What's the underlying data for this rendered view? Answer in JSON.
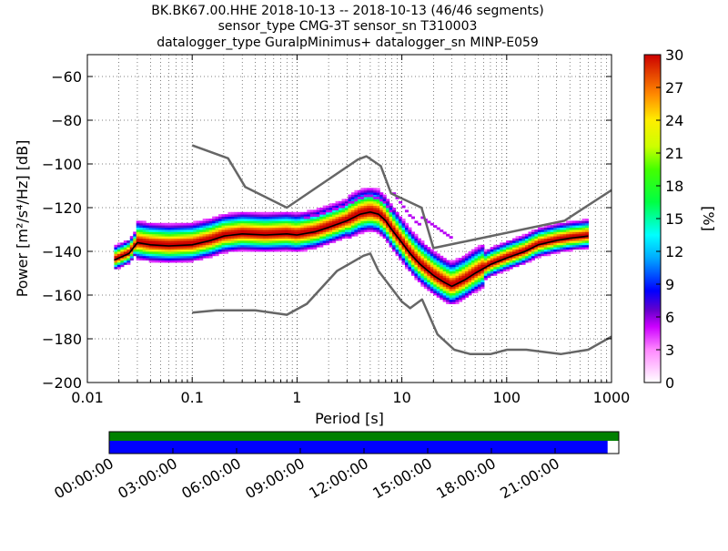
{
  "title_lines": [
    "BK.BK67.00.HHE   2018-10-13 -- 2018-10-13  (46/46 segments)",
    "sensor_type CMG-3T sensor_sn T310003",
    "datalogger_type GuralpMinimus+ datalogger_sn MINP-E059"
  ],
  "chart_data": {
    "type": "heatmap",
    "xlabel": "Period [s]",
    "ylabel": "Power [m²/s⁴/Hz] [dB]",
    "xscale": "log",
    "xlim": [
      0.01,
      1000
    ],
    "ylim": [
      -200,
      -50
    ],
    "x_ticks": [
      0.01,
      0.1,
      1,
      10,
      100,
      1000
    ],
    "x_tick_labels": [
      "0.01",
      "0.1",
      "1",
      "10",
      "100",
      "1000"
    ],
    "y_ticks": [
      -200,
      -180,
      -160,
      -140,
      -120,
      -100,
      -80,
      -60
    ],
    "y_tick_labels": [
      "−200",
      "−180",
      "−160",
      "−140",
      "−120",
      "−100",
      "−80",
      "−60"
    ],
    "grid": true,
    "colorbar": {
      "label": "[%]",
      "range": [
        0,
        30
      ],
      "ticks": [
        0,
        3,
        6,
        9,
        12,
        15,
        18,
        21,
        24,
        27,
        30
      ],
      "tick_labels": [
        "0",
        "3",
        "6",
        "9",
        "12",
        "15",
        "18",
        "21",
        "24",
        "27",
        "30"
      ]
    },
    "mode_curve": {
      "x": [
        0.018,
        0.025,
        0.03,
        0.04,
        0.06,
        0.1,
        0.15,
        0.2,
        0.3,
        0.5,
        0.8,
        1,
        1.5,
        2,
        3,
        4,
        5,
        6,
        7,
        8,
        10,
        12,
        15,
        20,
        25,
        30,
        40,
        50,
        70,
        100,
        150,
        200,
        300,
        400,
        600
      ],
      "y": [
        -144,
        -141,
        -136,
        -137,
        -137.5,
        -137,
        -135,
        -133,
        -132,
        -132.5,
        -132,
        -132.5,
        -131,
        -129,
        -126,
        -123,
        -122,
        -123,
        -126,
        -130,
        -136,
        -141,
        -146,
        -151,
        -154,
        -156,
        -153,
        -150,
        -146,
        -143,
        -140,
        -137,
        -135,
        -134,
        -133
      ]
    },
    "nlnm": {
      "x": [
        0.1,
        0.17,
        0.4,
        0.8,
        1.24,
        2.4,
        4.3,
        5,
        6,
        10,
        12,
        15.6,
        21.9,
        31.6,
        45,
        70,
        101,
        154,
        328,
        600,
        1000
      ],
      "y": [
        -168,
        -167,
        -167,
        -169,
        -164,
        -149,
        -142,
        -141,
        -149,
        -163,
        -166,
        -162,
        -178,
        -185,
        -187,
        -187,
        -185,
        -185,
        -187,
        -185,
        -179
      ]
    },
    "nhnm": {
      "x": [
        0.1,
        0.22,
        0.32,
        0.8,
        3.8,
        4.6,
        6.3,
        7.9,
        15.4,
        20,
        354.8,
        1000
      ],
      "y": [
        -91.5,
        -97.4,
        -110.5,
        -120,
        -98,
        -96.5,
        -101,
        -113.5,
        -120,
        -138.5,
        -126,
        -112
      ]
    }
  },
  "time_axis": {
    "tick_labels": [
      "00:00:00",
      "03:00:00",
      "06:00:00",
      "09:00:00",
      "12:00:00",
      "15:00:00",
      "18:00:00",
      "21:00:00"
    ],
    "top_bar_color": "#008000",
    "bottom_bar_color": "#0000ff",
    "coverage": 0.978
  }
}
